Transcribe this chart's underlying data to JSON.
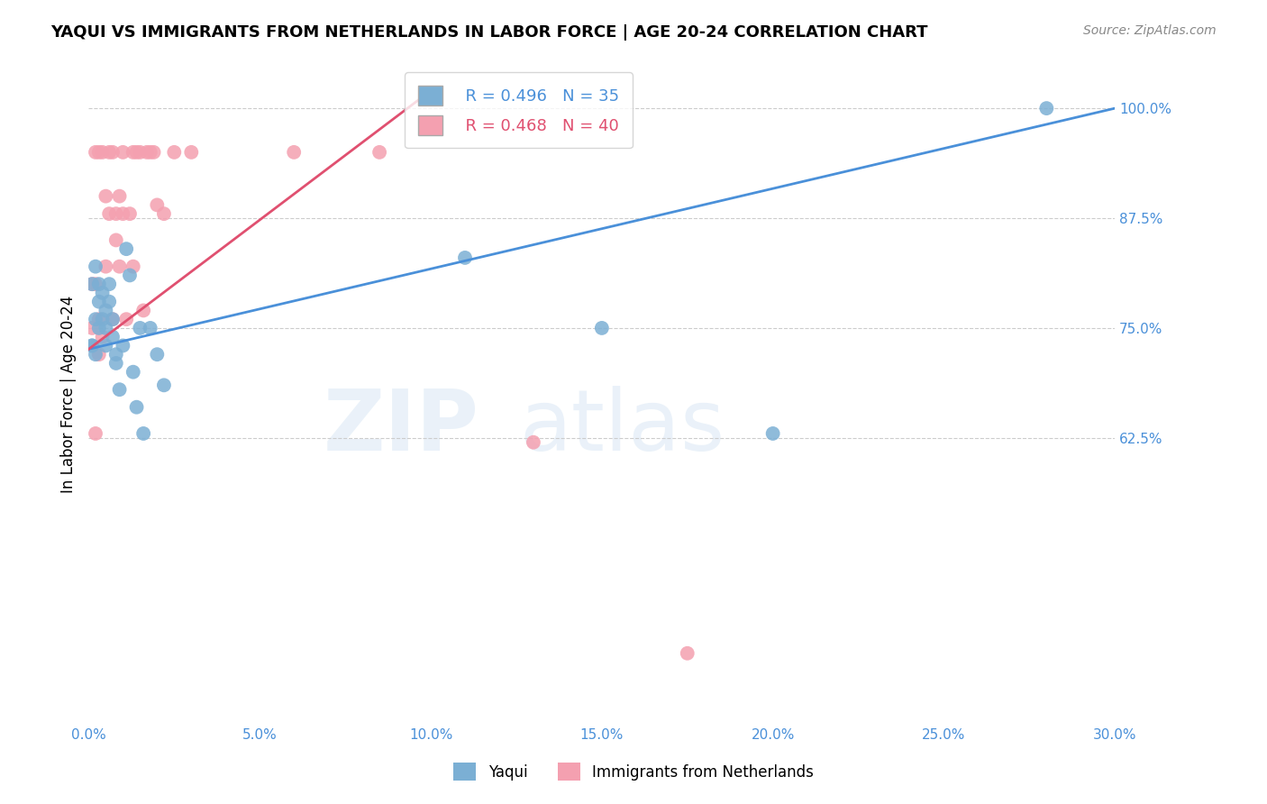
{
  "title": "YAQUI VS IMMIGRANTS FROM NETHERLANDS IN LABOR FORCE | AGE 20-24 CORRELATION CHART",
  "source": "Source: ZipAtlas.com",
  "xlabel": "",
  "ylabel": "In Labor Force | Age 20-24",
  "xlim": [
    0.0,
    0.3
  ],
  "ylim": [
    0.3,
    1.05
  ],
  "xticks": [
    0.0,
    0.05,
    0.1,
    0.15,
    0.2,
    0.25,
    0.3
  ],
  "xticklabels": [
    "0.0%",
    "5.0%",
    "10.0%",
    "15.0%",
    "20.0%",
    "25.0%",
    "30.0%"
  ],
  "yticks": [
    0.625,
    0.75,
    0.875,
    1.0
  ],
  "yticklabels": [
    "62.5%",
    "75.0%",
    "87.5%",
    "100.0%"
  ],
  "yaqui_color": "#7bafd4",
  "netherlands_color": "#f4a0b0",
  "trend_yaqui_color": "#4a90d9",
  "trend_netherlands_color": "#e05070",
  "legend_r_yaqui": "R = 0.496",
  "legend_n_yaqui": "N = 35",
  "legend_r_netherlands": "R = 0.468",
  "legend_n_netherlands": "N = 40",
  "watermark_zip": "ZIP",
  "watermark_atlas": "atlas",
  "yaqui_x": [
    0.001,
    0.002,
    0.002,
    0.003,
    0.003,
    0.003,
    0.004,
    0.004,
    0.005,
    0.005,
    0.005,
    0.006,
    0.006,
    0.007,
    0.007,
    0.008,
    0.008,
    0.009,
    0.01,
    0.011,
    0.012,
    0.013,
    0.014,
    0.015,
    0.016,
    0.018,
    0.02,
    0.022,
    0.11,
    0.15,
    0.2,
    0.28,
    0.001,
    0.001,
    0.002
  ],
  "yaqui_y": [
    0.73,
    0.72,
    0.76,
    0.75,
    0.78,
    0.8,
    0.76,
    0.79,
    0.75,
    0.77,
    0.73,
    0.8,
    0.78,
    0.76,
    0.74,
    0.72,
    0.71,
    0.68,
    0.73,
    0.84,
    0.81,
    0.7,
    0.66,
    0.75,
    0.63,
    0.75,
    0.72,
    0.685,
    0.83,
    0.75,
    0.63,
    1.0,
    0.8,
    0.73,
    0.82
  ],
  "netherlands_x": [
    0.001,
    0.001,
    0.002,
    0.002,
    0.003,
    0.003,
    0.004,
    0.004,
    0.005,
    0.005,
    0.006,
    0.006,
    0.007,
    0.007,
    0.008,
    0.008,
    0.009,
    0.009,
    0.01,
    0.01,
    0.011,
    0.012,
    0.013,
    0.013,
    0.014,
    0.015,
    0.016,
    0.017,
    0.018,
    0.019,
    0.02,
    0.022,
    0.025,
    0.03,
    0.06,
    0.085,
    0.13,
    0.175,
    0.002,
    0.003
  ],
  "netherlands_y": [
    0.75,
    0.8,
    0.8,
    0.95,
    0.76,
    0.95,
    0.74,
    0.95,
    0.9,
    0.82,
    0.95,
    0.88,
    0.95,
    0.76,
    0.85,
    0.88,
    0.9,
    0.82,
    0.95,
    0.88,
    0.76,
    0.88,
    0.95,
    0.82,
    0.95,
    0.95,
    0.77,
    0.95,
    0.95,
    0.95,
    0.89,
    0.88,
    0.95,
    0.95,
    0.95,
    0.95,
    0.62,
    0.38,
    0.63,
    0.72
  ],
  "trend_yaqui_x0": 0.0,
  "trend_yaqui_y0": 0.726,
  "trend_yaqui_x1": 0.3,
  "trend_yaqui_y1": 1.0,
  "trend_netherlands_x0": 0.0,
  "trend_netherlands_y0": 0.726,
  "trend_netherlands_x1": 0.1,
  "trend_netherlands_y1": 1.02
}
